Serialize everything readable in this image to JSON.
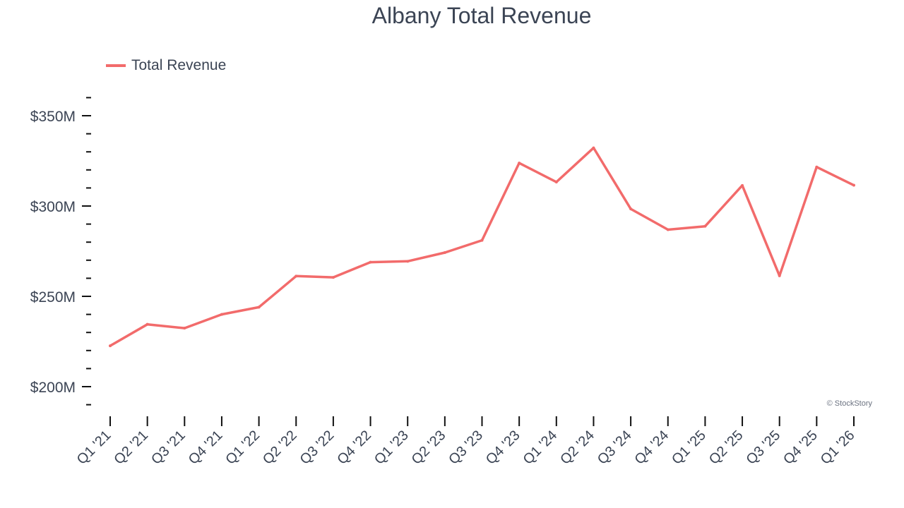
{
  "chart_data": {
    "type": "line",
    "title": "Albany Total Revenue",
    "xlabel": "",
    "ylabel": "",
    "categories": [
      "Q1 '21",
      "Q2 '21",
      "Q3 '21",
      "Q4 '21",
      "Q1 '22",
      "Q2 '22",
      "Q3 '22",
      "Q4 '22",
      "Q1 '23",
      "Q2 '23",
      "Q3 '23",
      "Q4 '23",
      "Q1 '24",
      "Q2 '24",
      "Q3 '24",
      "Q4 '24",
      "Q1 '25",
      "Q2 '25",
      "Q3 '25",
      "Q4 '25",
      "Q1 '26"
    ],
    "series": [
      {
        "name": "Total Revenue",
        "color": "#f26b6b",
        "values": [
          222.6,
          234.5,
          232.4,
          240.0,
          244.0,
          261.2,
          260.5,
          268.9,
          269.4,
          274.2,
          281.0,
          323.8,
          313.3,
          332.2,
          298.4,
          286.9,
          288.8,
          311.4,
          261.4,
          321.6,
          311.5
        ]
      }
    ],
    "ylim": [
      190,
      360
    ],
    "yticks_major": [
      200,
      250,
      300,
      350
    ],
    "ytick_labels": [
      "$200M",
      "$250M",
      "$300M",
      "$350M"
    ],
    "yticks_minor_step": 10,
    "grid": false,
    "legend": "top-left",
    "credit": "© StockStory"
  }
}
